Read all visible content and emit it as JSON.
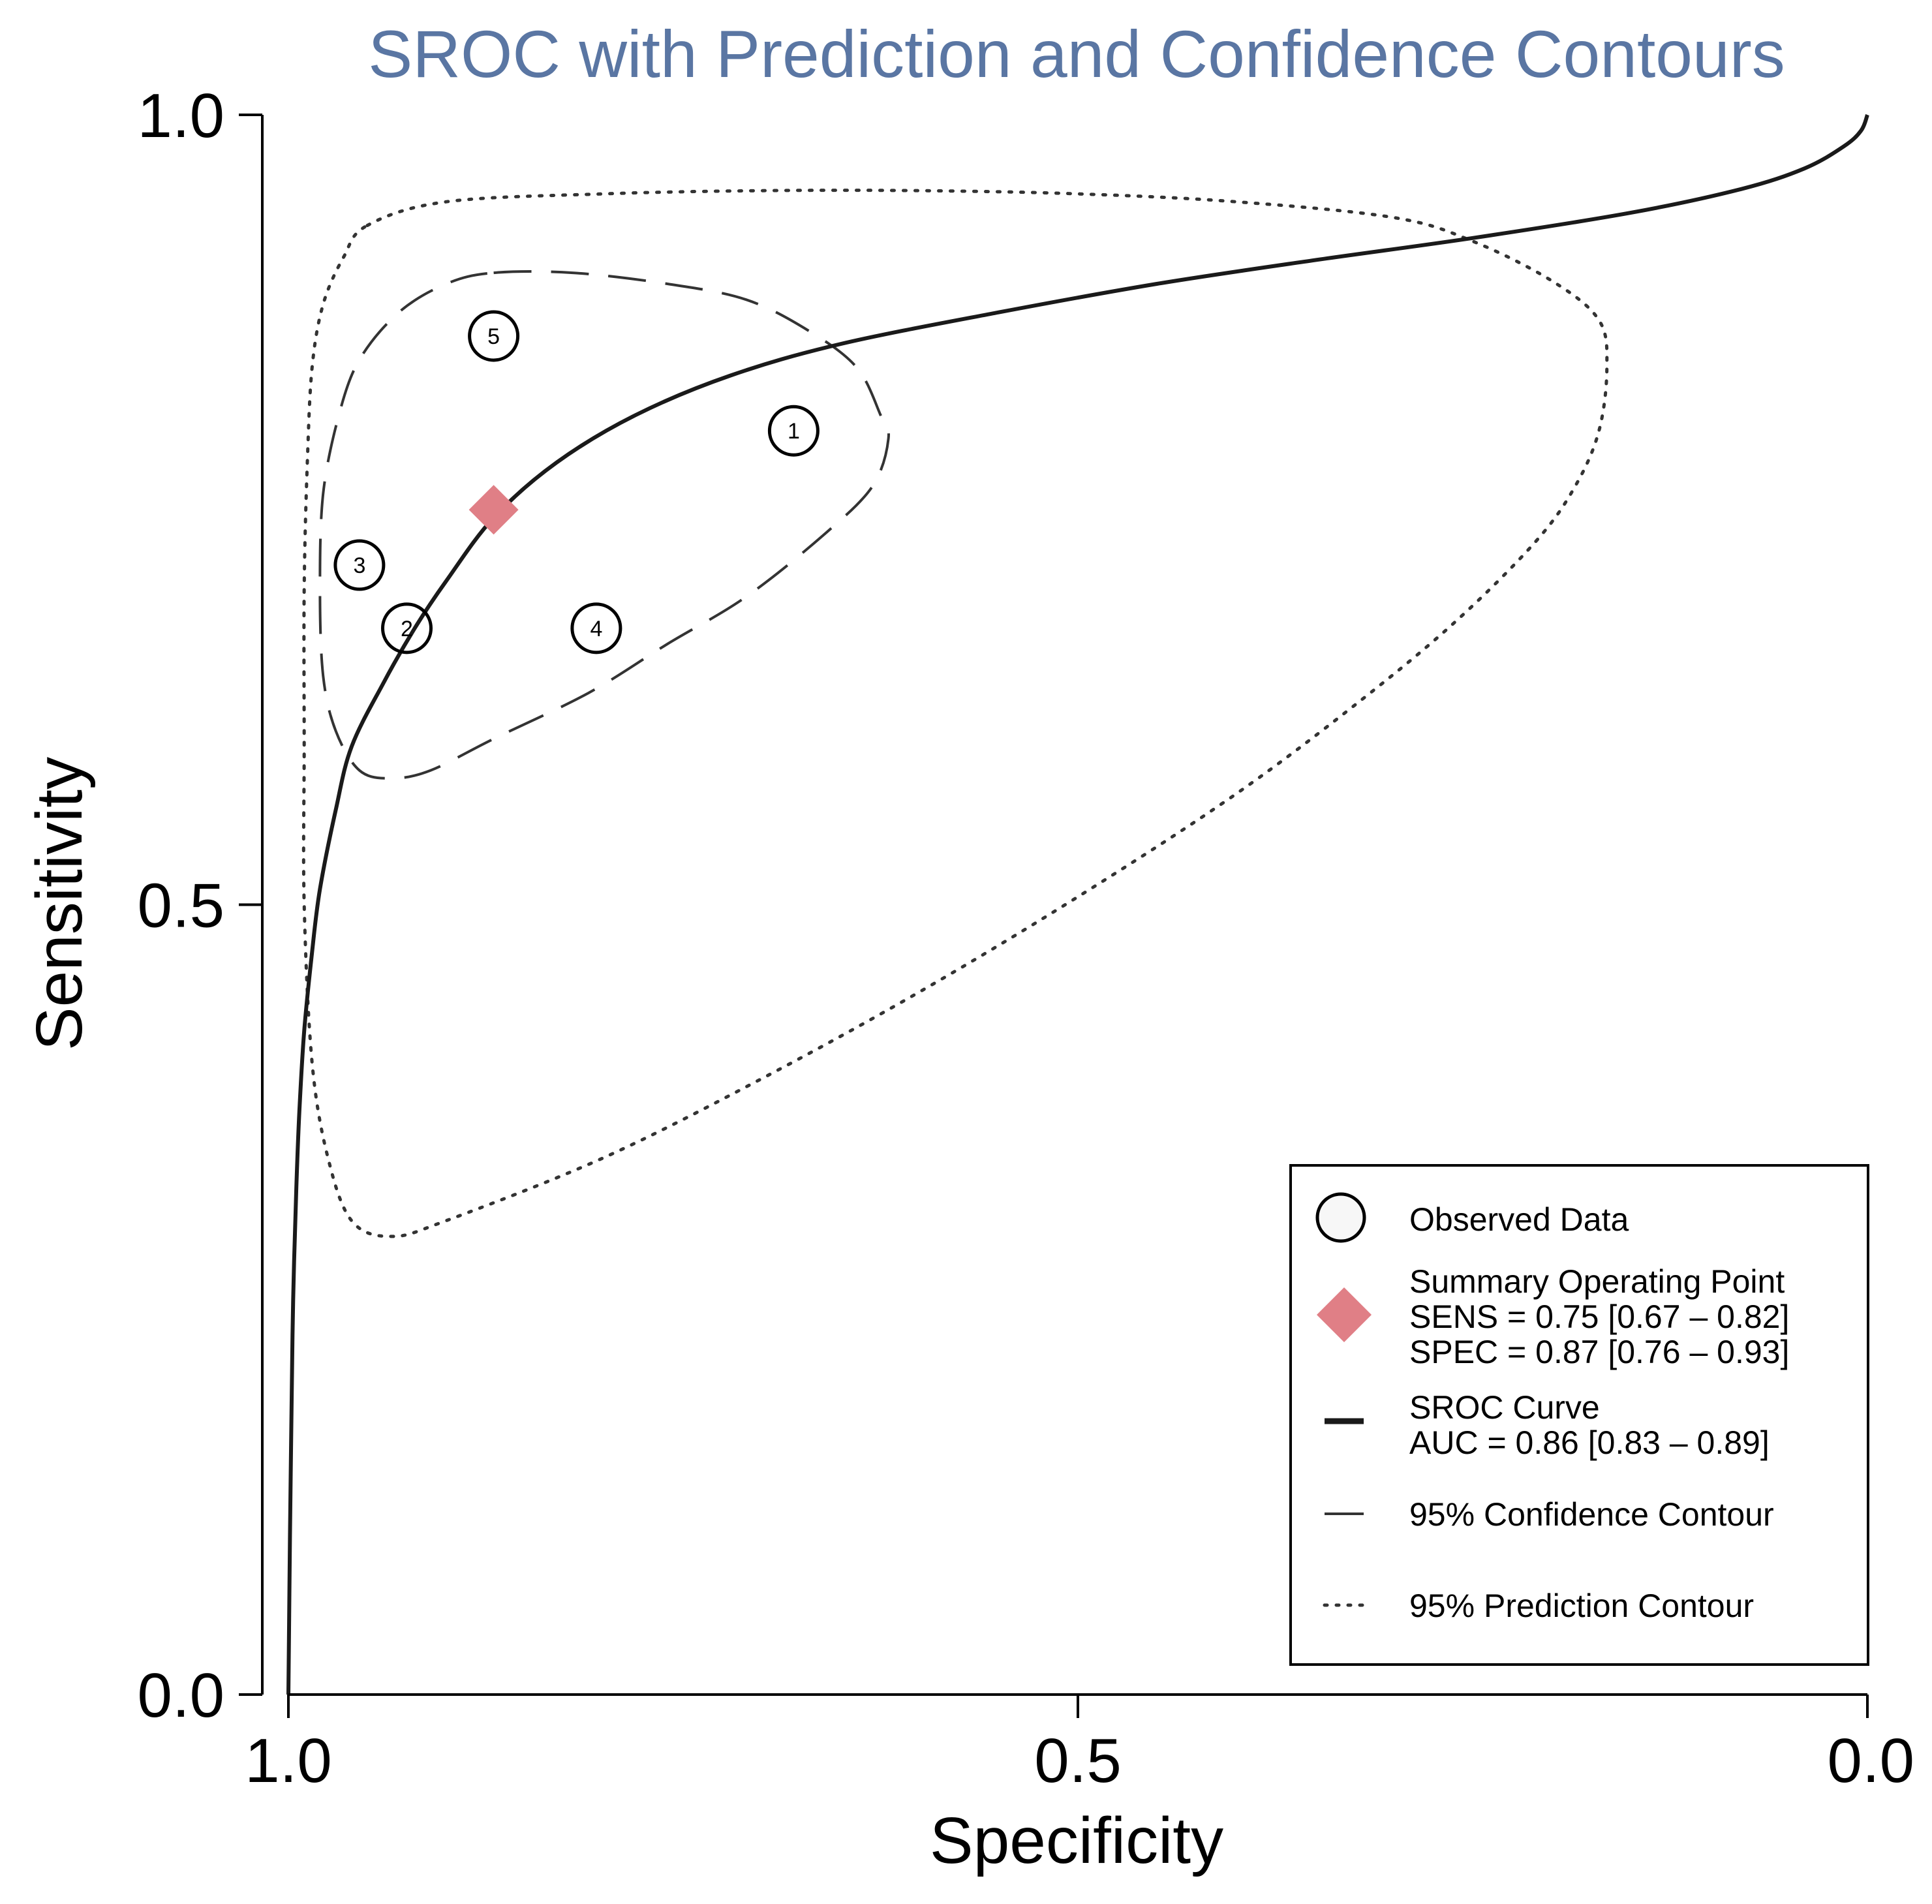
{
  "chart_data": {
    "type": "scatter",
    "title": "SROC with Prediction and Confidence Contours",
    "xlabel": "Specificity",
    "ylabel": "Sensitivity",
    "xlim": [
      1.0,
      0.0
    ],
    "ylim": [
      0.0,
      1.0
    ],
    "x_reversed": true,
    "x_ticks": [
      1.0,
      0.5,
      0.0
    ],
    "x_tick_labels": [
      "1.0",
      "0.5",
      "0.0"
    ],
    "y_ticks": [
      0.0,
      0.5,
      1.0
    ],
    "y_tick_labels": [
      "0.0",
      "0.5",
      "1.0"
    ],
    "grid": false,
    "legend_position": "bottom-right",
    "observed_points": [
      {
        "label": "1",
        "specificity": 0.68,
        "sensitivity": 0.8
      },
      {
        "label": "2",
        "specificity": 0.925,
        "sensitivity": 0.675
      },
      {
        "label": "3",
        "specificity": 0.955,
        "sensitivity": 0.715
      },
      {
        "label": "4",
        "specificity": 0.805,
        "sensitivity": 0.675
      },
      {
        "label": "5",
        "specificity": 0.87,
        "sensitivity": 0.86
      }
    ],
    "summary_point": {
      "specificity": 0.87,
      "sensitivity": 0.75
    },
    "sroc_curve": {
      "points": [
        [
          1.0,
          0.0
        ],
        [
          0.9995,
          0.05
        ],
        [
          0.999,
          0.1
        ],
        [
          0.998,
          0.18
        ],
        [
          0.997,
          0.25
        ],
        [
          0.995,
          0.32
        ],
        [
          0.993,
          0.37
        ],
        [
          0.99,
          0.42
        ],
        [
          0.985,
          0.47
        ],
        [
          0.98,
          0.51
        ],
        [
          0.97,
          0.56
        ],
        [
          0.96,
          0.6
        ],
        [
          0.94,
          0.64
        ],
        [
          0.92,
          0.675
        ],
        [
          0.9,
          0.705
        ],
        [
          0.87,
          0.745
        ],
        [
          0.83,
          0.78
        ],
        [
          0.78,
          0.81
        ],
        [
          0.72,
          0.835
        ],
        [
          0.65,
          0.855
        ],
        [
          0.55,
          0.875
        ],
        [
          0.45,
          0.893
        ],
        [
          0.35,
          0.908
        ],
        [
          0.25,
          0.922
        ],
        [
          0.15,
          0.938
        ],
        [
          0.08,
          0.953
        ],
        [
          0.04,
          0.966
        ],
        [
          0.015,
          0.98
        ],
        [
          0.004,
          0.99
        ],
        [
          0.0,
          1.0
        ]
      ]
    },
    "confidence_contour": {
      "points": [
        [
          0.87,
          0.9
        ],
        [
          0.82,
          0.9
        ],
        [
          0.76,
          0.893
        ],
        [
          0.71,
          0.883
        ],
        [
          0.67,
          0.863
        ],
        [
          0.64,
          0.84
        ],
        [
          0.625,
          0.81
        ],
        [
          0.62,
          0.795
        ],
        [
          0.63,
          0.765
        ],
        [
          0.66,
          0.735
        ],
        [
          0.71,
          0.695
        ],
        [
          0.76,
          0.665
        ],
        [
          0.81,
          0.634
        ],
        [
          0.87,
          0.605
        ],
        [
          0.91,
          0.585
        ],
        [
          0.935,
          0.58
        ],
        [
          0.955,
          0.585
        ],
        [
          0.97,
          0.61
        ],
        [
          0.978,
          0.645
        ],
        [
          0.98,
          0.7
        ],
        [
          0.978,
          0.76
        ],
        [
          0.968,
          0.81
        ],
        [
          0.955,
          0.845
        ],
        [
          0.93,
          0.875
        ],
        [
          0.9,
          0.893
        ]
      ]
    },
    "prediction_contour": {
      "points": [
        [
          0.95,
          0.93
        ],
        [
          0.9,
          0.945
        ],
        [
          0.8,
          0.95
        ],
        [
          0.7,
          0.952
        ],
        [
          0.6,
          0.952
        ],
        [
          0.5,
          0.95
        ],
        [
          0.4,
          0.945
        ],
        [
          0.3,
          0.935
        ],
        [
          0.25,
          0.92
        ],
        [
          0.2,
          0.895
        ],
        [
          0.17,
          0.87
        ],
        [
          0.165,
          0.84
        ],
        [
          0.17,
          0.8
        ],
        [
          0.185,
          0.765
        ],
        [
          0.21,
          0.73
        ],
        [
          0.26,
          0.68
        ],
        [
          0.32,
          0.63
        ],
        [
          0.4,
          0.57
        ],
        [
          0.5,
          0.505
        ],
        [
          0.6,
          0.445
        ],
        [
          0.7,
          0.39
        ],
        [
          0.8,
          0.34
        ],
        [
          0.9,
          0.3
        ],
        [
          0.935,
          0.29
        ],
        [
          0.96,
          0.3
        ],
        [
          0.975,
          0.34
        ],
        [
          0.985,
          0.4
        ],
        [
          0.99,
          0.5
        ],
        [
          0.99,
          0.6
        ],
        [
          0.99,
          0.7
        ],
        [
          0.988,
          0.78
        ],
        [
          0.985,
          0.84
        ],
        [
          0.978,
          0.88
        ],
        [
          0.965,
          0.91
        ]
      ]
    },
    "legend": {
      "observed": "Observed Data",
      "summary_title": "Summary Operating Point",
      "summary_sens": "SENS = 0.75 [0.67 – 0.82]",
      "summary_spec": "SPEC = 0.87 [0.76 – 0.93]",
      "sroc_title": "SROC Curve",
      "sroc_auc": "AUC = 0.86 [0.83 – 0.89]",
      "confidence": "95% Confidence Contour",
      "prediction": "95% Prediction Contour"
    },
    "colors": {
      "title": "#5a76a3",
      "summary": "#e07f86",
      "axis": "#000000",
      "curve": "#1a1a1a",
      "contour": "#333333"
    }
  }
}
